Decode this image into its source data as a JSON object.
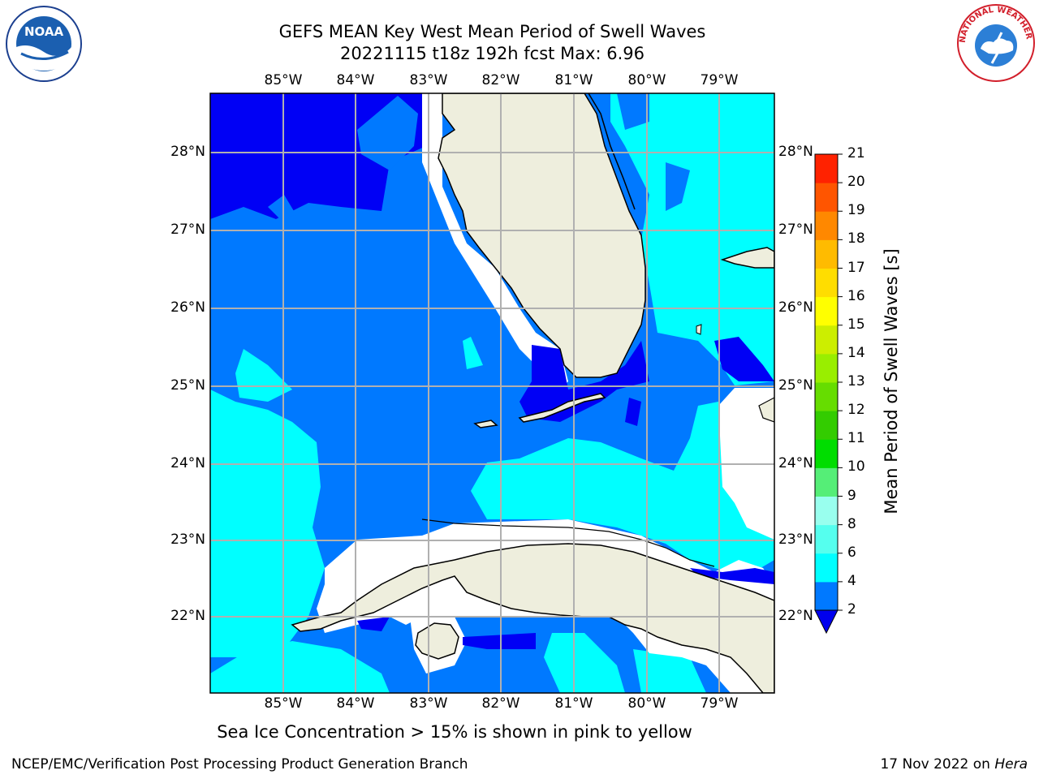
{
  "title": {
    "line1": "GEFS MEAN Key West Mean Period of Swell Waves",
    "line2": "20221115 t18z 192h fcst   Max: 6.96"
  },
  "map": {
    "lon_labels": [
      "85°W",
      "84°W",
      "83°W",
      "82°W",
      "81°W",
      "80°W",
      "79°W"
    ],
    "lat_labels": [
      "28°N",
      "27°N",
      "26°N",
      "25°N",
      "24°N",
      "23°N",
      "22°N"
    ],
    "land_color": "#eeeedd",
    "fill_colors": {
      "band_0_2": "#0000f5",
      "band_2_4": "#0079ff",
      "band_4_6": "#00ffff",
      "no_data": "#ffffff"
    }
  },
  "colorbar": {
    "label": "Mean Period of Swell Waves [s]",
    "ticks": [
      "2",
      "4",
      "6",
      "8",
      "9",
      "10",
      "11",
      "12",
      "13",
      "14",
      "15",
      "16",
      "17",
      "18",
      "19",
      "20",
      "21"
    ],
    "colors": [
      "#0000ee",
      "#0079ff",
      "#00ffff",
      "#55ffee",
      "#99ffee",
      "#55ee77",
      "#00dd00",
      "#33cc00",
      "#66dd00",
      "#99ee00",
      "#ccee00",
      "#ffff00",
      "#ffdd00",
      "#ffbb00",
      "#ff8800",
      "#ff5500",
      "#ff2200",
      "#ff0000"
    ]
  },
  "footer": {
    "note": "Sea Ice Concentration > 15% is shown in pink to yellow",
    "left": "NCEP/EMC/Verification Post Processing Product Generation Branch",
    "right_date": "17 Nov 2022 on",
    "right_host": "Hera"
  },
  "logos": {
    "noaa_text": "NOAA",
    "nws_text": "NATIONAL WEATHER SERVICE"
  }
}
